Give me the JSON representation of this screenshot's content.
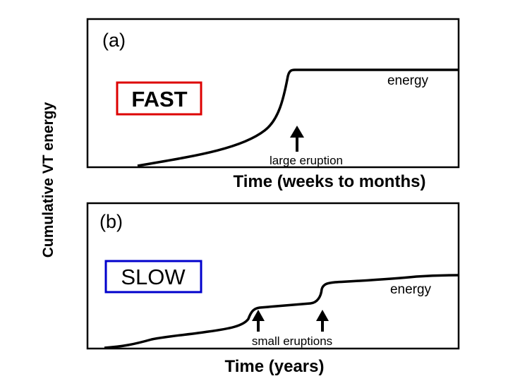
{
  "y_axis_label": "Cumulative VT energy",
  "panel_a": {
    "label": "(a)",
    "box_text": "FAST",
    "box_color": "#dd0000",
    "curve_label": "energy",
    "arrow_label": "large eruption",
    "x_axis_label": "Time (weeks to months)"
  },
  "panel_b": {
    "label": "(b)",
    "box_text": "SLOW",
    "box_color": "#0000cc",
    "curve_label": "energy",
    "arrow_label": "small eruptions",
    "x_axis_label": "Time (years)"
  }
}
